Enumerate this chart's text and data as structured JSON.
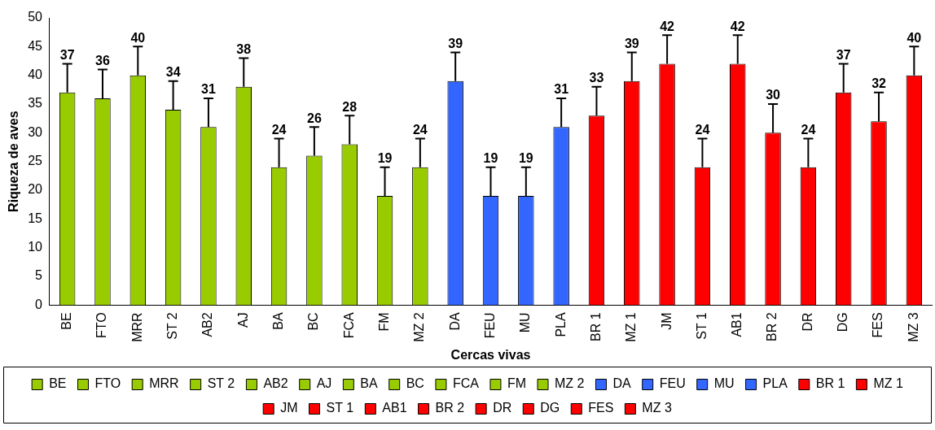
{
  "chart_data": {
    "type": "bar",
    "xlabel": "Cercas vivas",
    "ylabel": "Riqueza de aves",
    "categories": [
      "BE",
      "FTO",
      "MRR",
      "ST 2",
      "AB2",
      "AJ",
      "BA",
      "BC",
      "FCA",
      "FM",
      "MZ 2",
      "DA",
      "FEU",
      "MU",
      "PLA",
      "BR 1",
      "MZ 1",
      "JM",
      "ST 1",
      "AB1",
      "BR 2",
      "DR",
      "DG",
      "FES",
      "MZ 3"
    ],
    "series": [
      {
        "name": "BE",
        "color": "#99cc00",
        "values": [
          37,
          null,
          null,
          null,
          null,
          null,
          null,
          null,
          null,
          null,
          null,
          null,
          null,
          null,
          null,
          null,
          null,
          null,
          null,
          null,
          null,
          null,
          null,
          null,
          null
        ],
        "errors": [
          [
            37,
            42
          ],
          null,
          null,
          null,
          null,
          null,
          null,
          null,
          null,
          null,
          null,
          null,
          null,
          null,
          null,
          null,
          null,
          null,
          null,
          null,
          null,
          null,
          null,
          null,
          null
        ]
      },
      {
        "name": "FTO",
        "color": "#99cc00",
        "values": [
          null,
          36,
          null,
          null,
          null,
          null,
          null,
          null,
          null,
          null,
          null,
          null,
          null,
          null,
          null,
          null,
          null,
          null,
          null,
          null,
          null,
          null,
          null,
          null,
          null
        ],
        "errors": [
          null,
          [
            36,
            41
          ],
          null,
          null,
          null,
          null,
          null,
          null,
          null,
          null,
          null,
          null,
          null,
          null,
          null,
          null,
          null,
          null,
          null,
          null,
          null,
          null,
          null,
          null,
          null
        ]
      },
      {
        "name": "MRR",
        "color": "#99cc00",
        "values": [
          null,
          null,
          40,
          null,
          null,
          null,
          null,
          null,
          null,
          null,
          null,
          null,
          null,
          null,
          null,
          null,
          null,
          null,
          null,
          null,
          null,
          null,
          null,
          null,
          null
        ],
        "errors": [
          null,
          null,
          [
            40,
            45
          ],
          null,
          null,
          null,
          null,
          null,
          null,
          null,
          null,
          null,
          null,
          null,
          null,
          null,
          null,
          null,
          null,
          null,
          null,
          null,
          null,
          null,
          null
        ]
      },
      {
        "name": "ST 2",
        "color": "#99cc00",
        "values": [
          null,
          null,
          null,
          34,
          null,
          null,
          null,
          null,
          null,
          null,
          null,
          null,
          null,
          null,
          null,
          null,
          null,
          null,
          null,
          null,
          null,
          null,
          null,
          null,
          null
        ],
        "errors": [
          null,
          null,
          null,
          [
            34,
            39
          ],
          null,
          null,
          null,
          null,
          null,
          null,
          null,
          null,
          null,
          null,
          null,
          null,
          null,
          null,
          null,
          null,
          null,
          null,
          null,
          null,
          null
        ]
      },
      {
        "name": "AB2",
        "color": "#99cc00",
        "values": [
          null,
          null,
          null,
          null,
          31,
          null,
          null,
          null,
          null,
          null,
          null,
          null,
          null,
          null,
          null,
          null,
          null,
          null,
          null,
          null,
          null,
          null,
          null,
          null,
          null
        ],
        "errors": [
          null,
          null,
          null,
          null,
          [
            31,
            36
          ],
          null,
          null,
          null,
          null,
          null,
          null,
          null,
          null,
          null,
          null,
          null,
          null,
          null,
          null,
          null,
          null,
          null,
          null,
          null,
          null
        ]
      },
      {
        "name": "AJ",
        "color": "#99cc00",
        "values": [
          null,
          null,
          null,
          null,
          null,
          38,
          null,
          null,
          null,
          null,
          null,
          null,
          null,
          null,
          null,
          null,
          null,
          null,
          null,
          null,
          null,
          null,
          null,
          null,
          null
        ],
        "errors": [
          null,
          null,
          null,
          null,
          null,
          [
            38,
            43
          ],
          null,
          null,
          null,
          null,
          null,
          null,
          null,
          null,
          null,
          null,
          null,
          null,
          null,
          null,
          null,
          null,
          null,
          null,
          null
        ]
      },
      {
        "name": "BA",
        "color": "#99cc00",
        "values": [
          null,
          null,
          null,
          null,
          null,
          null,
          24,
          null,
          null,
          null,
          null,
          null,
          null,
          null,
          null,
          null,
          null,
          null,
          null,
          null,
          null,
          null,
          null,
          null,
          null
        ],
        "errors": [
          null,
          null,
          null,
          null,
          null,
          null,
          [
            24,
            29
          ],
          null,
          null,
          null,
          null,
          null,
          null,
          null,
          null,
          null,
          null,
          null,
          null,
          null,
          null,
          null,
          null,
          null,
          null
        ]
      },
      {
        "name": "BC",
        "color": "#99cc00",
        "values": [
          null,
          null,
          null,
          null,
          null,
          null,
          null,
          26,
          null,
          null,
          null,
          null,
          null,
          null,
          null,
          null,
          null,
          null,
          null,
          null,
          null,
          null,
          null,
          null,
          null
        ],
        "errors": [
          null,
          null,
          null,
          null,
          null,
          null,
          null,
          [
            26,
            31
          ],
          null,
          null,
          null,
          null,
          null,
          null,
          null,
          null,
          null,
          null,
          null,
          null,
          null,
          null,
          null,
          null,
          null
        ]
      },
      {
        "name": "FCA",
        "color": "#99cc00",
        "values": [
          null,
          null,
          null,
          null,
          null,
          null,
          null,
          null,
          28,
          null,
          null,
          null,
          null,
          null,
          null,
          null,
          null,
          null,
          null,
          null,
          null,
          null,
          null,
          null,
          null
        ],
        "errors": [
          null,
          null,
          null,
          null,
          null,
          null,
          null,
          null,
          [
            28,
            33
          ],
          null,
          null,
          null,
          null,
          null,
          null,
          null,
          null,
          null,
          null,
          null,
          null,
          null,
          null,
          null,
          null
        ]
      },
      {
        "name": "FM",
        "color": "#99cc00",
        "values": [
          null,
          null,
          null,
          null,
          null,
          null,
          null,
          null,
          null,
          19,
          null,
          null,
          null,
          null,
          null,
          null,
          null,
          null,
          null,
          null,
          null,
          null,
          null,
          null,
          null
        ],
        "errors": [
          null,
          null,
          null,
          null,
          null,
          null,
          null,
          null,
          null,
          [
            19,
            24
          ],
          null,
          null,
          null,
          null,
          null,
          null,
          null,
          null,
          null,
          null,
          null,
          null,
          null,
          null,
          null
        ]
      },
      {
        "name": "MZ 2",
        "color": "#99cc00",
        "values": [
          null,
          null,
          null,
          null,
          null,
          null,
          null,
          null,
          null,
          null,
          24,
          null,
          null,
          null,
          null,
          null,
          null,
          null,
          null,
          null,
          null,
          null,
          null,
          null,
          null
        ],
        "errors": [
          null,
          null,
          null,
          null,
          null,
          null,
          null,
          null,
          null,
          null,
          [
            24,
            29
          ],
          null,
          null,
          null,
          null,
          null,
          null,
          null,
          null,
          null,
          null,
          null,
          null,
          null,
          null
        ]
      },
      {
        "name": "DA",
        "color": "#3366ff",
        "values": [
          null,
          null,
          null,
          null,
          null,
          null,
          null,
          null,
          null,
          null,
          null,
          39,
          null,
          null,
          null,
          null,
          null,
          null,
          null,
          null,
          null,
          null,
          null,
          null,
          null
        ],
        "errors": [
          null,
          null,
          null,
          null,
          null,
          null,
          null,
          null,
          null,
          null,
          null,
          [
            39,
            44
          ],
          null,
          null,
          null,
          null,
          null,
          null,
          null,
          null,
          null,
          null,
          null,
          null,
          null
        ]
      },
      {
        "name": "FEU",
        "color": "#3366ff",
        "values": [
          null,
          null,
          null,
          null,
          null,
          null,
          null,
          null,
          null,
          null,
          null,
          null,
          19,
          null,
          null,
          null,
          null,
          null,
          null,
          null,
          null,
          null,
          null,
          null,
          null
        ],
        "errors": [
          null,
          null,
          null,
          null,
          null,
          null,
          null,
          null,
          null,
          null,
          null,
          null,
          [
            19,
            24
          ],
          null,
          null,
          null,
          null,
          null,
          null,
          null,
          null,
          null,
          null,
          null,
          null
        ]
      },
      {
        "name": "MU",
        "color": "#3366ff",
        "values": [
          null,
          null,
          null,
          null,
          null,
          null,
          null,
          null,
          null,
          null,
          null,
          null,
          null,
          19,
          null,
          null,
          null,
          null,
          null,
          null,
          null,
          null,
          null,
          null,
          null
        ],
        "errors": [
          null,
          null,
          null,
          null,
          null,
          null,
          null,
          null,
          null,
          null,
          null,
          null,
          null,
          [
            19,
            24
          ],
          null,
          null,
          null,
          null,
          null,
          null,
          null,
          null,
          null,
          null,
          null
        ]
      },
      {
        "name": "PLA",
        "color": "#3366ff",
        "values": [
          null,
          null,
          null,
          null,
          null,
          null,
          null,
          null,
          null,
          null,
          null,
          null,
          null,
          null,
          31,
          null,
          null,
          null,
          null,
          null,
          null,
          null,
          null,
          null,
          null
        ],
        "errors": [
          null,
          null,
          null,
          null,
          null,
          null,
          null,
          null,
          null,
          null,
          null,
          null,
          null,
          null,
          [
            31,
            36
          ],
          null,
          null,
          null,
          null,
          null,
          null,
          null,
          null,
          null,
          null
        ]
      },
      {
        "name": "BR 1",
        "color": "#ff0000",
        "values": [
          null,
          null,
          null,
          null,
          null,
          null,
          null,
          null,
          null,
          null,
          null,
          null,
          null,
          null,
          null,
          33,
          null,
          null,
          null,
          null,
          null,
          null,
          null,
          null,
          null
        ],
        "errors": [
          null,
          null,
          null,
          null,
          null,
          null,
          null,
          null,
          null,
          null,
          null,
          null,
          null,
          null,
          null,
          [
            33,
            38
          ],
          null,
          null,
          null,
          null,
          null,
          null,
          null,
          null,
          null
        ]
      },
      {
        "name": "MZ 1",
        "color": "#ff0000",
        "values": [
          null,
          null,
          null,
          null,
          null,
          null,
          null,
          null,
          null,
          null,
          null,
          null,
          null,
          null,
          null,
          null,
          39,
          null,
          null,
          null,
          null,
          null,
          null,
          null,
          null
        ],
        "errors": [
          null,
          null,
          null,
          null,
          null,
          null,
          null,
          null,
          null,
          null,
          null,
          null,
          null,
          null,
          null,
          null,
          [
            39,
            44
          ],
          null,
          null,
          null,
          null,
          null,
          null,
          null,
          null
        ]
      },
      {
        "name": "JM",
        "color": "#ff0000",
        "values": [
          null,
          null,
          null,
          null,
          null,
          null,
          null,
          null,
          null,
          null,
          null,
          null,
          null,
          null,
          null,
          null,
          null,
          42,
          null,
          null,
          null,
          null,
          null,
          null,
          null
        ],
        "errors": [
          null,
          null,
          null,
          null,
          null,
          null,
          null,
          null,
          null,
          null,
          null,
          null,
          null,
          null,
          null,
          null,
          null,
          [
            42,
            47
          ],
          null,
          null,
          null,
          null,
          null,
          null,
          null
        ]
      },
      {
        "name": "ST 1",
        "color": "#ff0000",
        "values": [
          null,
          null,
          null,
          null,
          null,
          null,
          null,
          null,
          null,
          null,
          null,
          null,
          null,
          null,
          null,
          null,
          null,
          null,
          24,
          null,
          null,
          null,
          null,
          null,
          null
        ],
        "errors": [
          null,
          null,
          null,
          null,
          null,
          null,
          null,
          null,
          null,
          null,
          null,
          null,
          null,
          null,
          null,
          null,
          null,
          null,
          [
            24,
            29
          ],
          null,
          null,
          null,
          null,
          null,
          null
        ]
      },
      {
        "name": "AB1",
        "color": "#ff0000",
        "values": [
          null,
          null,
          null,
          null,
          null,
          null,
          null,
          null,
          null,
          null,
          null,
          null,
          null,
          null,
          null,
          null,
          null,
          null,
          null,
          42,
          null,
          null,
          null,
          null,
          null
        ],
        "errors": [
          null,
          null,
          null,
          null,
          null,
          null,
          null,
          null,
          null,
          null,
          null,
          null,
          null,
          null,
          null,
          null,
          null,
          null,
          null,
          [
            42,
            47
          ],
          null,
          null,
          null,
          null,
          null
        ]
      },
      {
        "name": "BR 2",
        "color": "#ff0000",
        "values": [
          null,
          null,
          null,
          null,
          null,
          null,
          null,
          null,
          null,
          null,
          null,
          null,
          null,
          null,
          null,
          null,
          null,
          null,
          null,
          null,
          30,
          null,
          null,
          null,
          null
        ],
        "errors": [
          null,
          null,
          null,
          null,
          null,
          null,
          null,
          null,
          null,
          null,
          null,
          null,
          null,
          null,
          null,
          null,
          null,
          null,
          null,
          null,
          [
            30,
            35
          ],
          null,
          null,
          null,
          null
        ]
      },
      {
        "name": "DR",
        "color": "#ff0000",
        "values": [
          null,
          null,
          null,
          null,
          null,
          null,
          null,
          null,
          null,
          null,
          null,
          null,
          null,
          null,
          null,
          null,
          null,
          null,
          null,
          null,
          null,
          24,
          null,
          null,
          null
        ],
        "errors": [
          null,
          null,
          null,
          null,
          null,
          null,
          null,
          null,
          null,
          null,
          null,
          null,
          null,
          null,
          null,
          null,
          null,
          null,
          null,
          null,
          null,
          [
            24,
            29
          ],
          null,
          null,
          null
        ]
      },
      {
        "name": "DG",
        "color": "#ff0000",
        "values": [
          null,
          null,
          null,
          null,
          null,
          null,
          null,
          null,
          null,
          null,
          null,
          null,
          null,
          null,
          null,
          null,
          null,
          null,
          null,
          null,
          null,
          null,
          37,
          null,
          null
        ],
        "errors": [
          null,
          null,
          null,
          null,
          null,
          null,
          null,
          null,
          null,
          null,
          null,
          null,
          null,
          null,
          null,
          null,
          null,
          null,
          null,
          null,
          null,
          null,
          [
            37,
            42
          ],
          null,
          null
        ]
      },
      {
        "name": "FES",
        "color": "#ff0000",
        "values": [
          null,
          null,
          null,
          null,
          null,
          null,
          null,
          null,
          null,
          null,
          null,
          null,
          null,
          null,
          null,
          null,
          null,
          null,
          null,
          null,
          null,
          null,
          null,
          32,
          null
        ],
        "errors": [
          null,
          null,
          null,
          null,
          null,
          null,
          null,
          null,
          null,
          null,
          null,
          null,
          null,
          null,
          null,
          null,
          null,
          null,
          null,
          null,
          null,
          null,
          null,
          [
            32,
            37
          ],
          null
        ]
      },
      {
        "name": "MZ 3",
        "color": "#ff0000",
        "values": [
          null,
          null,
          null,
          null,
          null,
          null,
          null,
          null,
          null,
          null,
          null,
          null,
          null,
          null,
          null,
          null,
          null,
          null,
          null,
          null,
          null,
          null,
          null,
          null,
          40
        ],
        "errors": [
          null,
          null,
          null,
          null,
          null,
          null,
          null,
          null,
          null,
          null,
          null,
          null,
          null,
          null,
          null,
          null,
          null,
          null,
          null,
          null,
          null,
          null,
          null,
          null,
          [
            40,
            45
          ]
        ]
      }
    ],
    "ylim": [
      0,
      50
    ],
    "yticks": [
      0,
      5,
      10,
      15,
      20,
      25,
      30,
      35,
      40,
      45,
      50
    ],
    "data_labels": true,
    "grid": false,
    "legend": "bottom"
  }
}
